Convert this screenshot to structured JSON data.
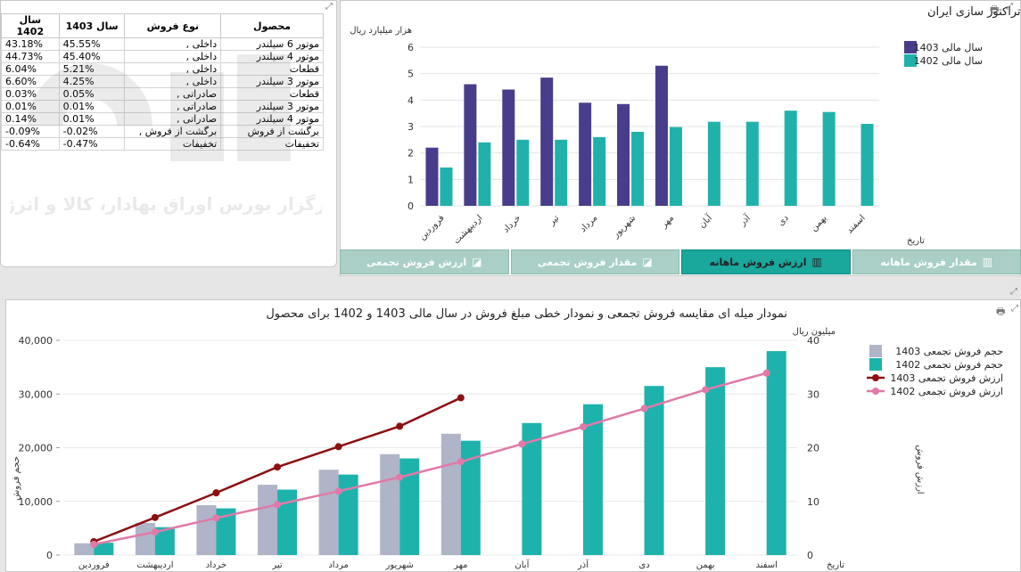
{
  "table": {
    "headers": {
      "sal_1402": "سال 1402",
      "sal_1403": "سال 1403",
      "type": "نوع فروش",
      "product": "محصول"
    },
    "rows": [
      {
        "v1402": "43.18%",
        "v1403": "45.55%",
        "type": "داخلی ,",
        "product": "موتور 6 سیلندر"
      },
      {
        "v1402": "44.73%",
        "v1403": "45.40%",
        "type": "داخلی ,",
        "product": "موتور 4 سیلندر"
      },
      {
        "v1402": "6.04%",
        "v1403": "5.21%",
        "type": "داخلی ,",
        "product": "قطعات"
      },
      {
        "v1402": "6.60%",
        "v1403": "4.25%",
        "type": "داخلی ,",
        "product": "موتور 3 سیلندر"
      },
      {
        "v1402": "0.03%",
        "v1403": "0.05%",
        "type": "صادراتی ,",
        "product": "قطعات"
      },
      {
        "v1402": "0.01%",
        "v1403": "0.01%",
        "type": "صادراتی ,",
        "product": "موتور 3 سیلندر"
      },
      {
        "v1402": "0.14%",
        "v1403": "0.01%",
        "type": "صادراتی ,",
        "product": "موتور 4 سیلندر"
      },
      {
        "v1402": "-0.09%",
        "v1403": "-0.02%",
        "type": "برگشت از فروش ,",
        "product": "برگشت از فروش"
      },
      {
        "v1402": "-0.64%",
        "v1403": "-0.47%",
        "type": "تخفیفات",
        "product": "تخفیفات"
      }
    ]
  },
  "watermark": {
    "brand": "آگاه",
    "slogan": "کارگزار بورس اوراق بهادار، کالا و انرژی"
  },
  "tabs": [
    {
      "label": "مقدار فروش ماهانه",
      "icon": "bar-chart-icon",
      "active": false
    },
    {
      "label": "ارزش فروش ماهانه",
      "icon": "bar-chart-icon",
      "active": true
    },
    {
      "label": "مقدار فروش تجمعی",
      "icon": "line-chart-icon",
      "active": false
    },
    {
      "label": "ارزش فروش تجمعی",
      "icon": "line-chart-icon",
      "active": false
    }
  ],
  "colors": {
    "bar_1403": "#483d8b",
    "bar_1402": "#20b2aa",
    "cum_bar_1403": "#b0b4c8",
    "cum_bar_1402": "#1db3ac",
    "line_1403": "#8b1010",
    "line_1402": "#e07aa8",
    "tab_active": "#1aa79c",
    "tab_inactive": "#a9cfc6"
  },
  "chart_data": [
    {
      "type": "bar",
      "title": "مقایسه ارزش فروش ماهانه سال مالی 1403 و 1402 برای شرکت موتورسازان تراکتور سازی ایران",
      "ylabel": "هزار میلیارد ریال",
      "xlabel": "تاریخ",
      "ylim": [
        0,
        6
      ],
      "yticks": [
        0,
        1,
        2,
        3,
        4,
        5,
        6
      ],
      "legend_position": "top-right",
      "categories": [
        "فروردین",
        "اردیبهشت",
        "خرداد",
        "تیر",
        "مرداد",
        "شهریور",
        "مهر",
        "آبان",
        "آذر",
        "دی",
        "بهمن",
        "اسفند"
      ],
      "series": [
        {
          "name": "سال مالی 1403",
          "values": [
            2.2,
            4.6,
            4.4,
            4.85,
            3.9,
            3.85,
            5.3,
            null,
            null,
            null,
            null,
            null
          ]
        },
        {
          "name": "سال مالی 1402",
          "values": [
            1.45,
            2.4,
            2.5,
            2.5,
            2.6,
            2.8,
            2.98,
            3.18,
            3.18,
            3.6,
            3.55,
            3.1
          ]
        }
      ]
    },
    {
      "type": "bar+line",
      "title": "نمودار میله ای مقایسه فروش تجمعی و نمودار خطی مبلغ فروش در سال مالی 1403 و 1402 برای محصول",
      "ylabel_left": "حجم فروش",
      "ylabel_right": "ارزش فروش",
      "yunit_right": "میلیون ریال",
      "xlabel": "تاریخ",
      "ylim_left": [
        0,
        40000
      ],
      "yticks_left": [
        "0",
        "10,000",
        "20,000",
        "30,000",
        "40,000"
      ],
      "ylim_right": [
        0,
        40
      ],
      "yticks_right": [
        0,
        10,
        20,
        30,
        40
      ],
      "legend_position": "top-right",
      "categories": [
        "فروردین",
        "اردیبهشت",
        "خرداد",
        "تیر",
        "مرداد",
        "شهریور",
        "مهر",
        "آبان",
        "آذر",
        "دی",
        "بهمن",
        "اسفند"
      ],
      "bars": [
        {
          "name": "حجم فروش تجمعی  1403",
          "values": [
            2200,
            6000,
            9300,
            13100,
            15900,
            18800,
            22600,
            null,
            null,
            null,
            null,
            null
          ]
        },
        {
          "name": "حجم فروش تجمعی 1402",
          "values": [
            2300,
            5200,
            8700,
            12200,
            15000,
            18000,
            21300,
            24600,
            28100,
            31500,
            35000,
            38000
          ]
        }
      ],
      "lines": [
        {
          "name": "ارزش فروش تجمعی 1403",
          "values": [
            2.5,
            7,
            11.6,
            16.4,
            20.2,
            24,
            29.3,
            null,
            null,
            null,
            null,
            null
          ]
        },
        {
          "name": "ارزش فروش تجمعی 1402",
          "values": [
            2,
            4.3,
            6.9,
            9.4,
            11.9,
            14.5,
            17.4,
            20.7,
            23.9,
            27.3,
            30.8,
            33.9
          ]
        }
      ]
    }
  ]
}
